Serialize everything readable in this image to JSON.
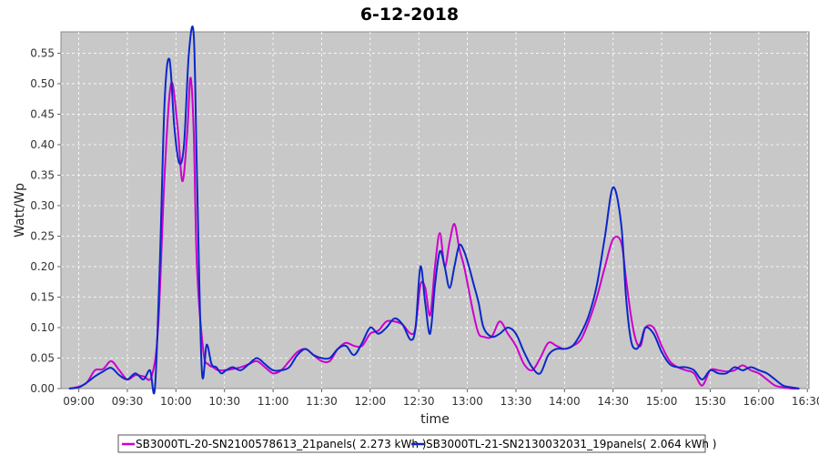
{
  "chart_data": {
    "type": "line",
    "title": "6-12-2018",
    "xlabel": "time",
    "ylabel": "Watt/Wp",
    "xlim": [
      "08:49",
      "16:31"
    ],
    "ylim": [
      0,
      0.585
    ],
    "x_ticks": [
      "09:00",
      "09:30",
      "10:00",
      "10:30",
      "11:00",
      "11:30",
      "12:00",
      "12:30",
      "13:00",
      "13:30",
      "14:00",
      "14:30",
      "15:00",
      "15:30",
      "16:00",
      "16:30"
    ],
    "y_ticks": [
      "0.00",
      "0.05",
      "0.10",
      "0.15",
      "0.20",
      "0.25",
      "0.30",
      "0.35",
      "0.40",
      "0.45",
      "0.50",
      "0.55"
    ],
    "grid": true,
    "legend_position": "bottom",
    "series": [
      {
        "name": "SB3000TL-20-SN2100578613_21panels( 2.273 kWh )",
        "color": "#cc00cc",
        "x": [
          "08:54",
          "09:00",
          "09:05",
          "09:10",
          "09:15",
          "09:20",
          "09:25",
          "09:30",
          "09:35",
          "09:40",
          "09:45",
          "09:49",
          "09:53",
          "09:57",
          "10:01",
          "10:04",
          "10:07",
          "10:09",
          "10:11",
          "10:13",
          "10:17",
          "10:20",
          "10:23",
          "10:26",
          "10:30",
          "10:35",
          "10:40",
          "10:45",
          "10:50",
          "10:55",
          "11:00",
          "11:05",
          "11:10",
          "11:15",
          "11:20",
          "11:25",
          "11:30",
          "11:35",
          "11:40",
          "11:45",
          "11:50",
          "11:55",
          "12:00",
          "12:05",
          "12:10",
          "12:15",
          "12:20",
          "12:25",
          "12:28",
          "12:31",
          "12:34",
          "12:37",
          "12:40",
          "12:43",
          "12:46",
          "12:49",
          "12:52",
          "12:55",
          "12:58",
          "13:01",
          "13:04",
          "13:07",
          "13:10",
          "13:15",
          "13:20",
          "13:25",
          "13:30",
          "13:35",
          "13:40",
          "13:45",
          "13:50",
          "13:55",
          "14:00",
          "14:05",
          "14:10",
          "14:15",
          "14:20",
          "14:25",
          "14:30",
          "14:35",
          "14:38",
          "14:41",
          "14:44",
          "14:47",
          "14:50",
          "14:55",
          "15:00",
          "15:05",
          "15:10",
          "15:15",
          "15:20",
          "15:25",
          "15:30",
          "15:35",
          "15:40",
          "15:45",
          "15:50",
          "15:55",
          "16:00",
          "16:05",
          "16:10",
          "16:15",
          "16:20",
          "16:25"
        ],
        "values": [
          0.0,
          0.003,
          0.01,
          0.03,
          0.032,
          0.045,
          0.03,
          0.015,
          0.022,
          0.02,
          0.02,
          0.1,
          0.35,
          0.5,
          0.43,
          0.34,
          0.42,
          0.51,
          0.42,
          0.2,
          0.06,
          0.04,
          0.035,
          0.03,
          0.03,
          0.032,
          0.035,
          0.04,
          0.045,
          0.035,
          0.025,
          0.03,
          0.045,
          0.06,
          0.065,
          0.055,
          0.045,
          0.045,
          0.065,
          0.075,
          0.07,
          0.07,
          0.09,
          0.095,
          0.11,
          0.11,
          0.105,
          0.09,
          0.1,
          0.17,
          0.165,
          0.12,
          0.2,
          0.255,
          0.2,
          0.24,
          0.27,
          0.23,
          0.2,
          0.16,
          0.12,
          0.09,
          0.085,
          0.085,
          0.11,
          0.09,
          0.07,
          0.04,
          0.03,
          0.05,
          0.075,
          0.07,
          0.065,
          0.07,
          0.08,
          0.11,
          0.15,
          0.2,
          0.245,
          0.24,
          0.18,
          0.12,
          0.08,
          0.07,
          0.1,
          0.1,
          0.07,
          0.045,
          0.035,
          0.03,
          0.025,
          0.005,
          0.03,
          0.03,
          0.028,
          0.03,
          0.038,
          0.03,
          0.025,
          0.015,
          0.005,
          0.002,
          0.0,
          0.0
        ]
      },
      {
        "name": "SB3000TL-21-SN2130032031_19panels( 2.064 kWh )",
        "color": "#0a28c8",
        "x": [
          "08:54",
          "09:00",
          "09:05",
          "09:10",
          "09:15",
          "09:20",
          "09:25",
          "09:30",
          "09:35",
          "09:40",
          "09:44",
          "09:47",
          "09:50",
          "09:53",
          "09:56",
          "09:59",
          "10:02",
          "10:05",
          "10:08",
          "10:11",
          "10:13",
          "10:16",
          "10:19",
          "10:22",
          "10:25",
          "10:28",
          "10:31",
          "10:35",
          "10:40",
          "10:45",
          "10:50",
          "10:55",
          "11:00",
          "11:05",
          "11:10",
          "11:15",
          "11:20",
          "11:25",
          "11:30",
          "11:35",
          "11:40",
          "11:45",
          "11:50",
          "11:55",
          "12:00",
          "12:05",
          "12:10",
          "12:15",
          "12:20",
          "12:25",
          "12:28",
          "12:31",
          "12:34",
          "12:37",
          "12:40",
          "12:43",
          "12:46",
          "12:49",
          "12:52",
          "12:55",
          "12:58",
          "13:01",
          "13:04",
          "13:07",
          "13:10",
          "13:15",
          "13:20",
          "13:25",
          "13:30",
          "13:35",
          "13:40",
          "13:45",
          "13:50",
          "13:55",
          "14:00",
          "14:05",
          "14:10",
          "14:15",
          "14:20",
          "14:25",
          "14:30",
          "14:35",
          "14:38",
          "14:41",
          "14:44",
          "14:47",
          "14:50",
          "14:55",
          "15:00",
          "15:05",
          "15:10",
          "15:15",
          "15:20",
          "15:25",
          "15:30",
          "15:35",
          "15:40",
          "15:45",
          "15:50",
          "15:55",
          "16:00",
          "16:05",
          "16:10",
          "16:15",
          "16:20",
          "16:25"
        ],
        "values": [
          0.0,
          0.002,
          0.01,
          0.02,
          0.028,
          0.034,
          0.022,
          0.015,
          0.025,
          0.015,
          0.03,
          0.0,
          0.2,
          0.47,
          0.54,
          0.43,
          0.37,
          0.4,
          0.55,
          0.58,
          0.35,
          0.03,
          0.072,
          0.04,
          0.035,
          0.025,
          0.03,
          0.035,
          0.03,
          0.04,
          0.05,
          0.04,
          0.03,
          0.03,
          0.035,
          0.055,
          0.065,
          0.055,
          0.05,
          0.05,
          0.065,
          0.07,
          0.055,
          0.075,
          0.1,
          0.09,
          0.1,
          0.115,
          0.105,
          0.08,
          0.1,
          0.2,
          0.14,
          0.09,
          0.17,
          0.225,
          0.2,
          0.165,
          0.2,
          0.235,
          0.225,
          0.2,
          0.17,
          0.14,
          0.1,
          0.085,
          0.09,
          0.1,
          0.09,
          0.06,
          0.035,
          0.025,
          0.055,
          0.065,
          0.065,
          0.07,
          0.09,
          0.12,
          0.17,
          0.25,
          0.33,
          0.27,
          0.15,
          0.08,
          0.065,
          0.075,
          0.1,
          0.09,
          0.06,
          0.04,
          0.035,
          0.035,
          0.03,
          0.015,
          0.03,
          0.025,
          0.025,
          0.035,
          0.03,
          0.035,
          0.03,
          0.025,
          0.015,
          0.005,
          0.002,
          0.0
        ]
      }
    ]
  }
}
